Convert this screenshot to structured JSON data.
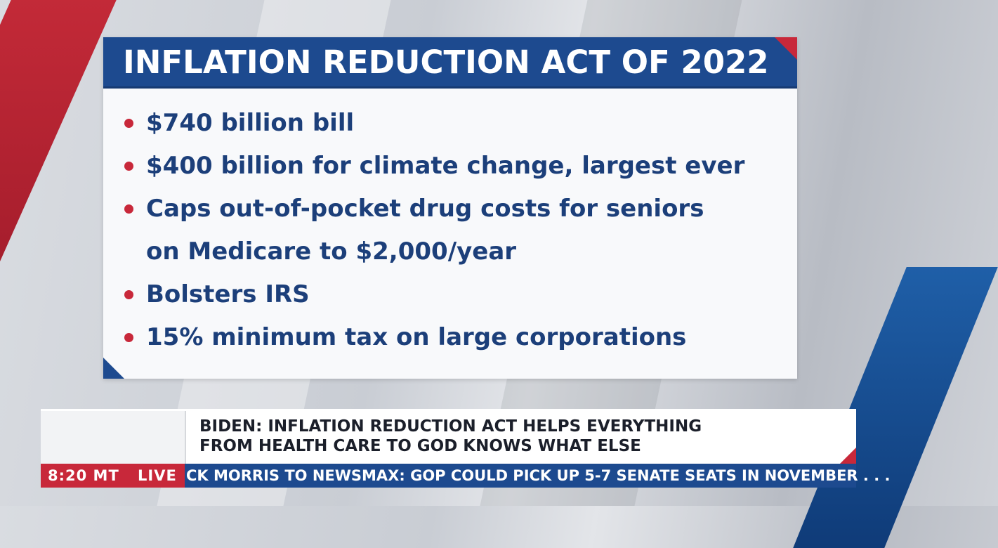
{
  "card": {
    "title": "INFLATION REDUCTION ACT OF 2022",
    "bullets": [
      "$740 billion bill",
      "$400 billion for climate change, largest ever",
      "Caps out-of-pocket drug costs for seniors",
      "Bolsters IRS",
      "15% minimum tax on large corporations"
    ],
    "continuation": "on Medicare to $2,000/year"
  },
  "lower_third": {
    "headline_line1": "BIDEN: INFLATION REDUCTION ACT HELPS EVERYTHING",
    "headline_line2": "FROM HEALTH CARE TO GOD KNOWS WHAT ELSE"
  },
  "ticker": {
    "time": "8:20 MT",
    "live": "LIVE",
    "text": "CK MORRIS TO NEWSMAX: GOP COULD PICK UP 5-7 SENATE SEATS IN NOVEMBER . . ."
  },
  "colors": {
    "brand_blue": "#1d4a8f",
    "brand_red": "#c8283a"
  }
}
